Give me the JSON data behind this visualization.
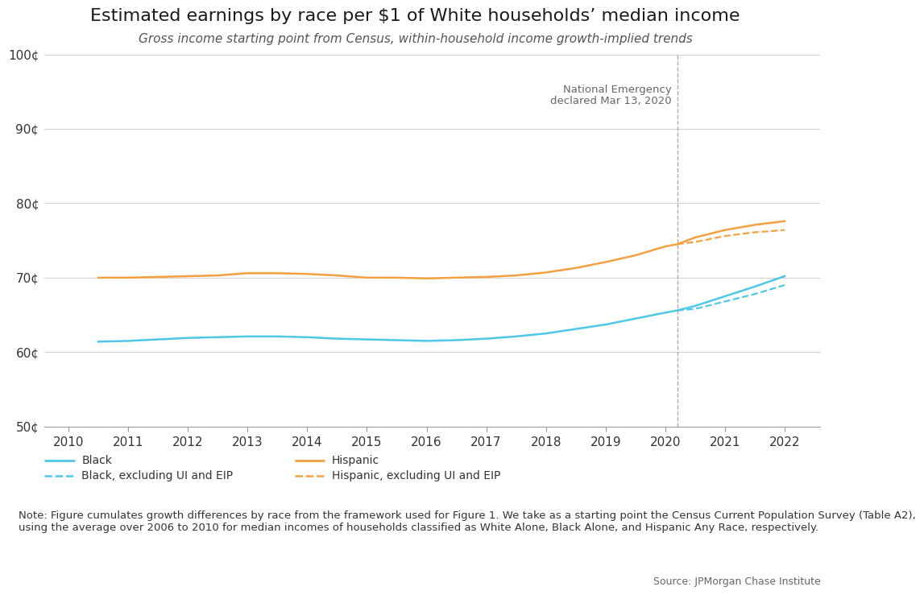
{
  "title": "Estimated earnings by race per $1 of White households’ median income",
  "subtitle": "Gross income starting point from Census, within-household income growth-implied trends",
  "black_years": [
    2010.5,
    2011,
    2011.5,
    2012,
    2012.5,
    2013,
    2013.5,
    2014,
    2014.5,
    2015,
    2015.5,
    2016,
    2016.5,
    2017,
    2017.5,
    2018,
    2018.5,
    2019,
    2019.5,
    2020,
    2020.2,
    2020.5,
    2021,
    2021.5,
    2022
  ],
  "black_solid": [
    0.614,
    0.615,
    0.617,
    0.619,
    0.62,
    0.621,
    0.621,
    0.62,
    0.618,
    0.617,
    0.616,
    0.615,
    0.616,
    0.618,
    0.621,
    0.625,
    0.631,
    0.637,
    0.645,
    0.653,
    0.656,
    0.662,
    0.675,
    0.688,
    0.702
  ],
  "black_dashed_years": [
    2020.2,
    2020.5,
    2021,
    2021.5,
    2022
  ],
  "black_dashed": [
    0.656,
    0.658,
    0.668,
    0.678,
    0.69
  ],
  "hispanic_years": [
    2010.5,
    2011,
    2011.5,
    2012,
    2012.5,
    2013,
    2013.5,
    2014,
    2014.5,
    2015,
    2015.5,
    2016,
    2016.5,
    2017,
    2017.5,
    2018,
    2018.5,
    2019,
    2019.5,
    2020,
    2020.2,
    2020.5,
    2021,
    2021.5,
    2022
  ],
  "hispanic_solid": [
    0.7,
    0.7,
    0.701,
    0.702,
    0.703,
    0.706,
    0.706,
    0.705,
    0.703,
    0.7,
    0.7,
    0.699,
    0.7,
    0.701,
    0.703,
    0.707,
    0.713,
    0.721,
    0.73,
    0.742,
    0.745,
    0.754,
    0.764,
    0.771,
    0.776
  ],
  "hispanic_dashed_years": [
    2020.2,
    2020.5,
    2021,
    2021.5,
    2022
  ],
  "hispanic_dashed": [
    0.745,
    0.748,
    0.756,
    0.761,
    0.764
  ],
  "black_color": "#4dc8e8",
  "hispanic_color": "#f5a040",
  "vline_x": 2020.2,
  "vline_label_line1": "National Emergency",
  "vline_label_line2": "declared Mar 13, 2020",
  "ylim": [
    0.5,
    1.0
  ],
  "xlim": [
    2009.6,
    2022.6
  ],
  "yticks": [
    0.5,
    0.6,
    0.7,
    0.8,
    0.9,
    1.0
  ],
  "ytick_labels": [
    "50¢",
    "60¢",
    "70¢",
    "80¢",
    "90¢",
    "100¢"
  ],
  "xticks": [
    2010,
    2011,
    2012,
    2013,
    2014,
    2015,
    2016,
    2017,
    2018,
    2019,
    2020,
    2021,
    2022
  ],
  "note_line1": "Note: Figure cumulates growth differences by race from the framework used for Figure 1. We take as a starting point the Census Current Population Survey (Table A2),",
  "note_line2": "using the average over 2006 to 2010 for median incomes of households classified as White Alone, Black Alone, and Hispanic Any Race, respectively.",
  "source": "Source: JPMorgan Chase Institute",
  "legend_black_solid": "Black",
  "legend_black_dashed": "Black, excluding UI and EIP",
  "legend_hispanic_solid": "Hispanic",
  "legend_hispanic_dashed": "Hispanic, excluding UI and EIP",
  "background_color": "#ffffff",
  "grid_color": "#d0d0d0",
  "title_fontsize": 16,
  "subtitle_fontsize": 11,
  "axis_fontsize": 11,
  "legend_fontsize": 10,
  "note_fontsize": 9.5,
  "vline_color": "#aaaaaa",
  "text_color": "#333333",
  "annotation_color": "#666666"
}
